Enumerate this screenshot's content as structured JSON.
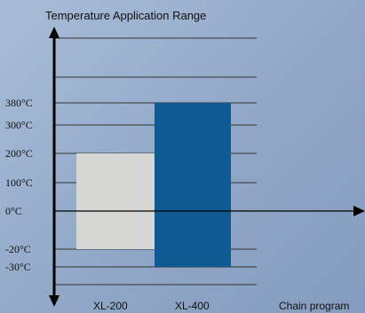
{
  "chart_data": {
    "type": "bar",
    "title": "Temperature Application Range",
    "xlabel": "Chain program",
    "ylabel": "",
    "categories": [
      "XL-200",
      "XL-400"
    ],
    "series": [
      {
        "min": -20,
        "max": 200,
        "color": "#d6d7d5"
      },
      {
        "min": -30,
        "max": 380,
        "color": "#0f5a92"
      }
    ],
    "y_ticks": [
      {
        "value": 380,
        "label": "380°C"
      },
      {
        "value": 300,
        "label": "300°C"
      },
      {
        "value": 200,
        "label": "200°C"
      },
      {
        "value": 100,
        "label": "100°C"
      },
      {
        "value": 0,
        "label": "0°C"
      },
      {
        "value": -20,
        "label": "-20°C"
      },
      {
        "value": -30,
        "label": "-30°C"
      }
    ],
    "ylim": [
      -30,
      380
    ],
    "grid": true,
    "axis_color": "#000000",
    "gridline_color": "#333333"
  }
}
